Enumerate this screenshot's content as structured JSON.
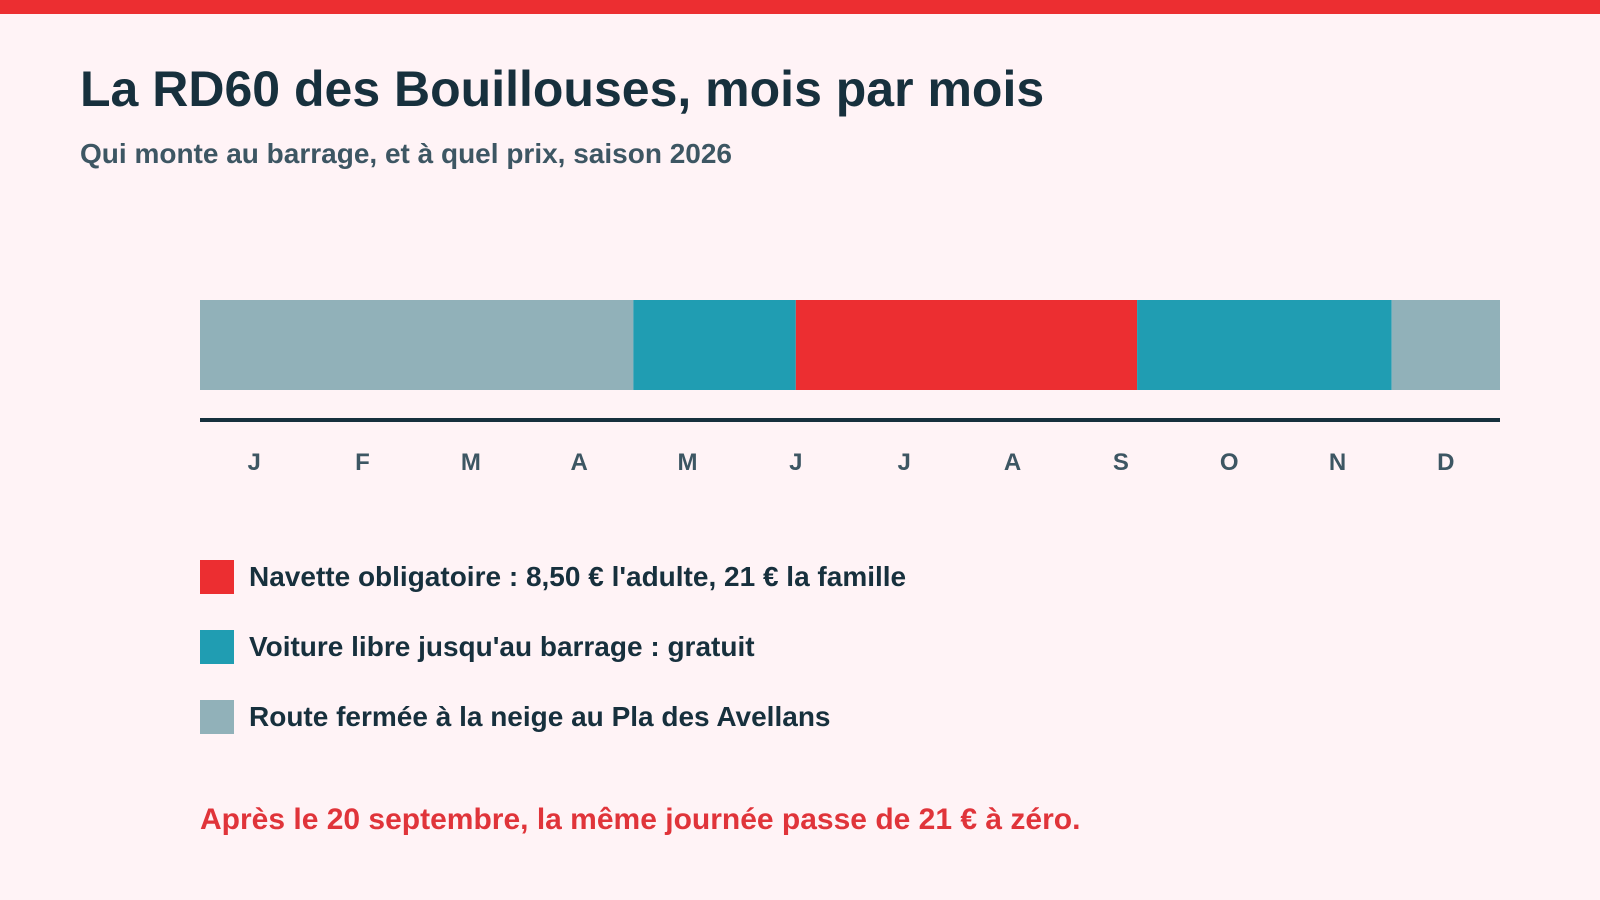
{
  "title": "La RD60 des Bouillouses, mois par mois",
  "subtitle": "Qui monte au barrage, et à quel prix, saison 2026",
  "chart_data": {
    "type": "timeline",
    "x_unit": "month of year (0 = 1 January, 12 = 31 December)",
    "xlim": [
      0,
      12
    ],
    "months": [
      "J",
      "F",
      "M",
      "A",
      "M",
      "J",
      "J",
      "A",
      "S",
      "O",
      "N",
      "D"
    ],
    "segments": [
      {
        "start": 0,
        "end": 4.0,
        "category": "closed"
      },
      {
        "start": 4.0,
        "end": 5.5,
        "category": "free"
      },
      {
        "start": 5.5,
        "end": 8.65,
        "category": "shuttle"
      },
      {
        "start": 8.65,
        "end": 11.0,
        "category": "free"
      },
      {
        "start": 11.0,
        "end": 12,
        "category": "closed"
      }
    ],
    "legend": [
      {
        "key": "shuttle",
        "label": "Navette obligatoire : 8,50 € l'adulte, 21 € la famille",
        "color": "#ec2e31"
      },
      {
        "key": "free",
        "label": "Voiture libre jusqu'au barrage : gratuit",
        "color": "#209db2"
      },
      {
        "key": "closed",
        "label": "Route fermée à la neige au Pla des Avellans",
        "color": "#91b1b9"
      }
    ],
    "annotation": "Après le 20 septembre, la même journée passe de 21 € à zéro."
  },
  "colors": {
    "accent": "#ec2e31",
    "axis": "#17303d",
    "month_label": "#3d5663",
    "note": "#e0343a"
  }
}
